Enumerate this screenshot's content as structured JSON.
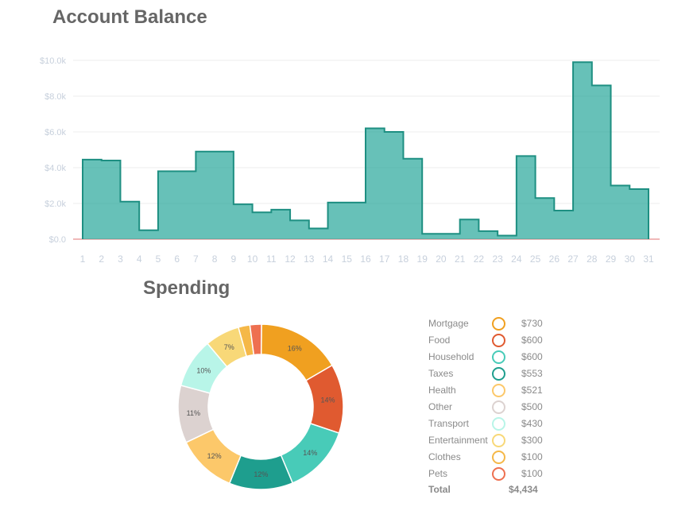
{
  "balance_title": "Account Balance",
  "spending_title": "Spending",
  "chart_data": [
    {
      "type": "area",
      "title": "Account Balance",
      "step": true,
      "x": [
        1,
        2,
        3,
        4,
        5,
        6,
        7,
        8,
        9,
        10,
        11,
        12,
        13,
        14,
        15,
        16,
        17,
        18,
        19,
        20,
        21,
        22,
        23,
        24,
        25,
        26,
        27,
        28,
        29,
        30,
        31
      ],
      "values": [
        4.45,
        4.4,
        2.1,
        0.5,
        3.8,
        3.8,
        4.9,
        4.9,
        1.95,
        1.5,
        1.65,
        1.05,
        0.6,
        2.05,
        2.05,
        6.2,
        6.0,
        4.5,
        0.3,
        0.3,
        1.1,
        0.45,
        0.2,
        4.65,
        2.3,
        1.6,
        9.9,
        8.6,
        3.0,
        2.8,
        2.8
      ],
      "y_ticks": [
        "$0.0",
        "$2.0k",
        "$4.0k",
        "$6.0k",
        "$8.0k",
        "$10.0k"
      ],
      "x_ticks": [
        "1",
        "2",
        "3",
        "4",
        "5",
        "6",
        "7",
        "8",
        "9",
        "10",
        "11",
        "12",
        "13",
        "14",
        "15",
        "16",
        "17",
        "18",
        "19",
        "20",
        "21",
        "22",
        "23",
        "24",
        "25",
        "26",
        "27",
        "28",
        "29",
        "30",
        "31"
      ],
      "ylim": [
        0,
        10
      ],
      "color": "#26a69a",
      "grid": true
    },
    {
      "type": "pie",
      "title": "Spending",
      "donut": true,
      "categories": [
        "Mortgage",
        "Food",
        "Household",
        "Taxes",
        "Health",
        "Other",
        "Transport",
        "Entertainment",
        "Clothes",
        "Pets"
      ],
      "values": [
        730,
        600,
        600,
        553,
        521,
        500,
        430,
        300,
        100,
        100
      ],
      "labels": [
        "16%",
        "14%",
        "14%",
        "12%",
        "12%",
        "11%",
        "10%",
        "7%",
        "",
        ""
      ],
      "amounts": [
        "$730",
        "$600",
        "$600",
        "$553",
        "$521",
        "$500",
        "$430",
        "$300",
        "$100",
        "$100"
      ],
      "colors": [
        "#f0a020",
        "#e05a30",
        "#48cbb8",
        "#1e9e8e",
        "#fcc86a",
        "#dcd2d0",
        "#b8f5e8",
        "#f8d878",
        "#f5b848",
        "#ee7050"
      ],
      "total_label": "Total",
      "total": "$4,434"
    }
  ]
}
